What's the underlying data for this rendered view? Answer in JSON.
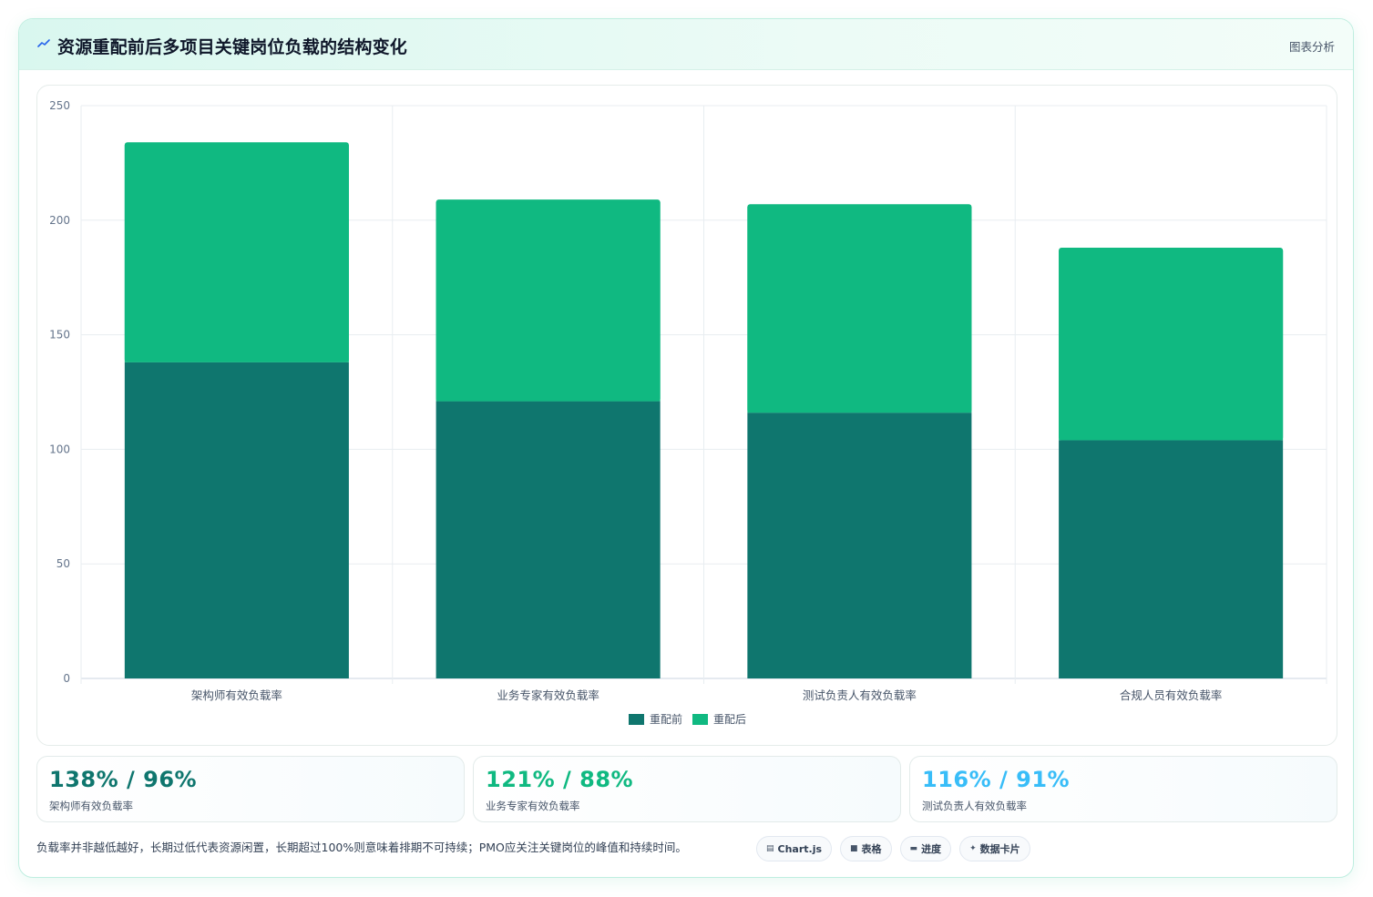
{
  "header": {
    "title": "资源重配前后多项目关键岗位负载的结构变化",
    "link_label": "图表分析"
  },
  "colors": {
    "before": "#0f766e",
    "after": "#10b981",
    "kpi1": "#0f766e",
    "kpi2": "#10b981",
    "kpi3": "#38bdf8"
  },
  "chart_data": {
    "type": "bar",
    "stacked": true,
    "categories": [
      "架构师有效负载率",
      "业务专家有效负载率",
      "测试负责人有效负载率",
      "合规人员有效负载率"
    ],
    "series": [
      {
        "name": "重配前",
        "values": [
          138,
          121,
          116,
          104
        ]
      },
      {
        "name": "重配后",
        "values": [
          96,
          88,
          91,
          84
        ]
      }
    ],
    "ylim": [
      0,
      250
    ],
    "yticks": [
      0,
      50,
      100,
      150,
      200,
      250
    ],
    "grid": true,
    "legend_position": "bottom"
  },
  "kpis": [
    {
      "value": "138% / 96%",
      "label": "架构师有效负载率"
    },
    {
      "value": "121% / 88%",
      "label": "业务专家有效负载率"
    },
    {
      "value": "116% / 91%",
      "label": "测试负责人有效负载率"
    }
  ],
  "footnote": "负载率并非越低越好，长期过低代表资源闲置，长期超过100%则意味着排期不可持续；PMO应关注关键岗位的峰值和持续时间。",
  "tags": [
    {
      "icon": "▤",
      "label": "Chart.js"
    },
    {
      "icon": "■",
      "label": "表格"
    },
    {
      "icon": "▬",
      "label": "进度"
    },
    {
      "icon": "✦",
      "label": "数据卡片"
    }
  ]
}
